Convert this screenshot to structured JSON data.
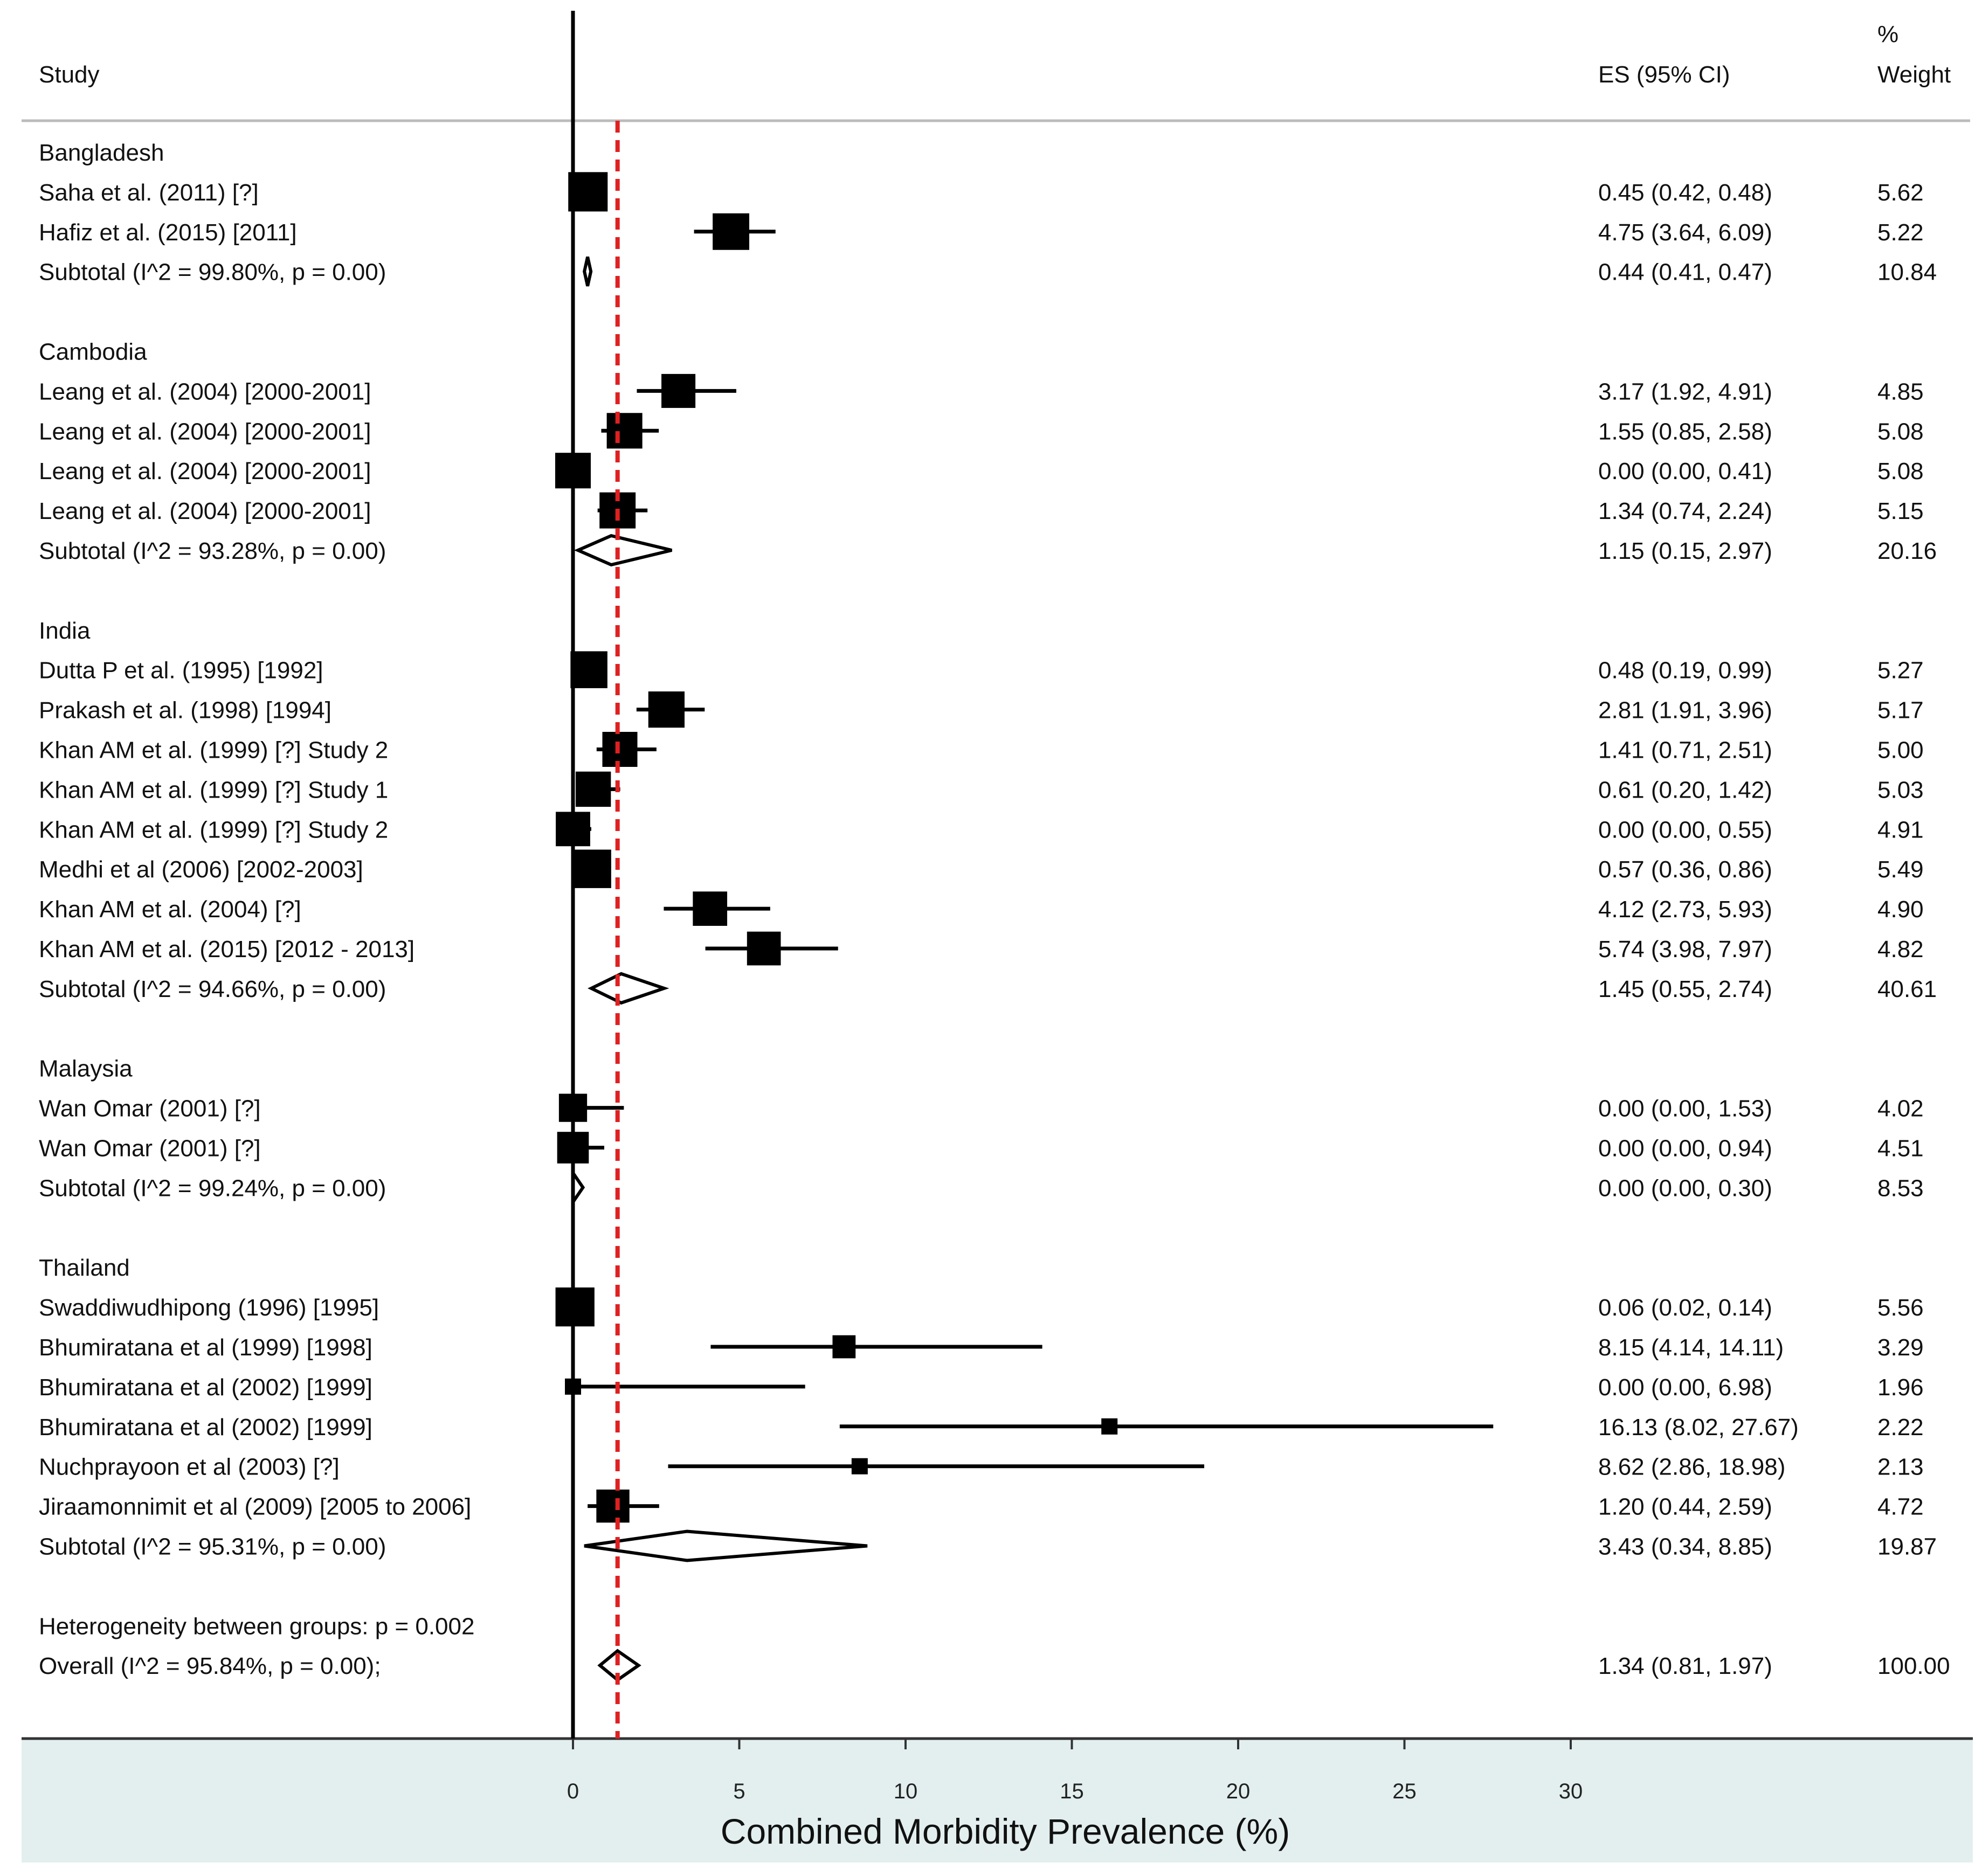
{
  "chart_data": {
    "type": "forest",
    "xlabel": "Combined Morbidity Prevalence (%)",
    "xlim": [
      0,
      30
    ],
    "xticks": [
      0,
      5,
      10,
      15,
      20,
      25,
      30
    ],
    "reference_line": 0,
    "overall_line": 1.34,
    "headers": {
      "study": "Study",
      "es": "ES (95% CI)",
      "weight_top": "%",
      "weight": "Weight"
    },
    "rows": [
      {
        "kind": "group",
        "label": "Bangladesh"
      },
      {
        "kind": "study",
        "label": "Saha et al.  (2011) [?]",
        "es": 0.45,
        "lo": 0.42,
        "hi": 0.48,
        "es_text": "0.45 (0.42, 0.48)",
        "weight": "5.62"
      },
      {
        "kind": "study",
        "label": "Hafiz et al. (2015) [2011]",
        "es": 4.75,
        "lo": 3.64,
        "hi": 6.09,
        "es_text": "4.75 (3.64, 6.09)",
        "weight": "5.22"
      },
      {
        "kind": "subtotal",
        "label": "Subtotal  (I^2 = 99.80%, p = 0.00)",
        "es": 0.44,
        "lo": 0.41,
        "hi": 0.47,
        "es_text": "0.44 (0.41, 0.47)",
        "weight": "10.84"
      },
      {
        "kind": "blank"
      },
      {
        "kind": "group",
        "label": "Cambodia"
      },
      {
        "kind": "study",
        "label": "Leang et al. (2004) [2000-2001]",
        "es": 3.17,
        "lo": 1.92,
        "hi": 4.91,
        "es_text": "3.17 (1.92, 4.91)",
        "weight": "4.85"
      },
      {
        "kind": "study",
        "label": "Leang et al. (2004) [2000-2001]",
        "es": 1.55,
        "lo": 0.85,
        "hi": 2.58,
        "es_text": "1.55 (0.85, 2.58)",
        "weight": "5.08"
      },
      {
        "kind": "study",
        "label": "Leang et al. (2004) [2000-2001]",
        "es": 0.0,
        "lo": 0.0,
        "hi": 0.41,
        "es_text": "0.00 (0.00, 0.41)",
        "weight": "5.08"
      },
      {
        "kind": "study",
        "label": "Leang et al. (2004) [2000-2001]",
        "es": 1.34,
        "lo": 0.74,
        "hi": 2.24,
        "es_text": "1.34 (0.74, 2.24)",
        "weight": "5.15"
      },
      {
        "kind": "subtotal",
        "label": "Subtotal  (I^2 = 93.28%, p = 0.00)",
        "es": 1.15,
        "lo": 0.15,
        "hi": 2.97,
        "es_text": "1.15 (0.15, 2.97)",
        "weight": "20.16"
      },
      {
        "kind": "blank"
      },
      {
        "kind": "group",
        "label": "India"
      },
      {
        "kind": "study",
        "label": "Dutta P et al. (1995) [1992]",
        "es": 0.48,
        "lo": 0.19,
        "hi": 0.99,
        "es_text": "0.48 (0.19, 0.99)",
        "weight": "5.27"
      },
      {
        "kind": "study",
        "label": "Prakash et al. (1998) [1994]",
        "es": 2.81,
        "lo": 1.91,
        "hi": 3.96,
        "es_text": "2.81 (1.91, 3.96)",
        "weight": "5.17"
      },
      {
        "kind": "study",
        "label": "Khan AM et al. (1999) [?] Study 2",
        "es": 1.41,
        "lo": 0.71,
        "hi": 2.51,
        "es_text": "1.41 (0.71, 2.51)",
        "weight": "5.00"
      },
      {
        "kind": "study",
        "label": "Khan AM et al. (1999) [?] Study 1",
        "es": 0.61,
        "lo": 0.2,
        "hi": 1.42,
        "es_text": "0.61 (0.20, 1.42)",
        "weight": "5.03"
      },
      {
        "kind": "study",
        "label": "Khan AM et al. (1999) [?] Study 2",
        "es": 0.0,
        "lo": 0.0,
        "hi": 0.55,
        "es_text": "0.00 (0.00, 0.55)",
        "weight": "4.91"
      },
      {
        "kind": "study",
        "label": "Medhi et al (2006) [2002-2003]",
        "es": 0.57,
        "lo": 0.36,
        "hi": 0.86,
        "es_text": "0.57 (0.36, 0.86)",
        "weight": "5.49"
      },
      {
        "kind": "study",
        "label": "Khan AM et al. (2004) [?]",
        "es": 4.12,
        "lo": 2.73,
        "hi": 5.93,
        "es_text": "4.12 (2.73, 5.93)",
        "weight": "4.90"
      },
      {
        "kind": "study",
        "label": "Khan AM et al. (2015) [2012 - 2013]",
        "es": 5.74,
        "lo": 3.98,
        "hi": 7.97,
        "es_text": "5.74 (3.98, 7.97)",
        "weight": "4.82"
      },
      {
        "kind": "subtotal",
        "label": "Subtotal  (I^2 = 94.66%, p = 0.00)",
        "es": 1.45,
        "lo": 0.55,
        "hi": 2.74,
        "es_text": "1.45 (0.55, 2.74)",
        "weight": "40.61"
      },
      {
        "kind": "blank"
      },
      {
        "kind": "group",
        "label": "Malaysia"
      },
      {
        "kind": "study",
        "label": "Wan Omar (2001) [?]",
        "es": 0.0,
        "lo": 0.0,
        "hi": 1.53,
        "es_text": "0.00 (0.00, 1.53)",
        "weight": "4.02"
      },
      {
        "kind": "study",
        "label": "Wan Omar (2001) [?]",
        "es": 0.0,
        "lo": 0.0,
        "hi": 0.94,
        "es_text": "0.00 (0.00, 0.94)",
        "weight": "4.51"
      },
      {
        "kind": "subtotal",
        "label": "Subtotal  (I^2 = 99.24%, p = 0.00)",
        "es": 0.0,
        "lo": 0.0,
        "hi": 0.3,
        "es_text": "0.00 (0.00, 0.30)",
        "weight": "8.53"
      },
      {
        "kind": "blank"
      },
      {
        "kind": "group",
        "label": "Thailand"
      },
      {
        "kind": "study",
        "label": "Swaddiwudhipong (1996) [1995]",
        "es": 0.06,
        "lo": 0.02,
        "hi": 0.14,
        "es_text": "0.06 (0.02, 0.14)",
        "weight": "5.56"
      },
      {
        "kind": "study",
        "label": "Bhumiratana et al (1999) [1998]",
        "es": 8.15,
        "lo": 4.14,
        "hi": 14.11,
        "es_text": "8.15 (4.14, 14.11)",
        "weight": "3.29"
      },
      {
        "kind": "study",
        "label": "Bhumiratana et al (2002) [1999]",
        "es": 0.0,
        "lo": 0.0,
        "hi": 6.98,
        "es_text": "0.00 (0.00, 6.98)",
        "weight": "1.96"
      },
      {
        "kind": "study",
        "label": "Bhumiratana et al (2002) [1999]",
        "es": 16.13,
        "lo": 8.02,
        "hi": 27.67,
        "es_text": "16.13 (8.02, 27.67)",
        "weight": "2.22"
      },
      {
        "kind": "study",
        "label": "Nuchprayoon et al (2003) [?]",
        "es": 8.62,
        "lo": 2.86,
        "hi": 18.98,
        "es_text": "8.62 (2.86, 18.98)",
        "weight": "2.13"
      },
      {
        "kind": "study",
        "label": "Jiraamonnimit et al (2009) [2005 to 2006]",
        "es": 1.2,
        "lo": 0.44,
        "hi": 2.59,
        "es_text": "1.20 (0.44, 2.59)",
        "weight": "4.72"
      },
      {
        "kind": "subtotal",
        "label": "Subtotal  (I^2 = 95.31%, p = 0.00)",
        "es": 3.43,
        "lo": 0.34,
        "hi": 8.85,
        "es_text": "3.43 (0.34, 8.85)",
        "weight": "19.87"
      },
      {
        "kind": "blank"
      },
      {
        "kind": "note",
        "label": "Heterogeneity between groups: p = 0.002"
      },
      {
        "kind": "overall",
        "label": "Overall  (I^2 = 95.84%, p = 0.00);",
        "es": 1.34,
        "lo": 0.81,
        "hi": 1.97,
        "es_text": "1.34 (0.81, 1.97)",
        "weight": "100.00"
      }
    ]
  },
  "colors": {
    "overall_line": "#e02020",
    "marker": "#000000",
    "axis_band": "#e3efef",
    "divider": "#bbbbbb"
  }
}
